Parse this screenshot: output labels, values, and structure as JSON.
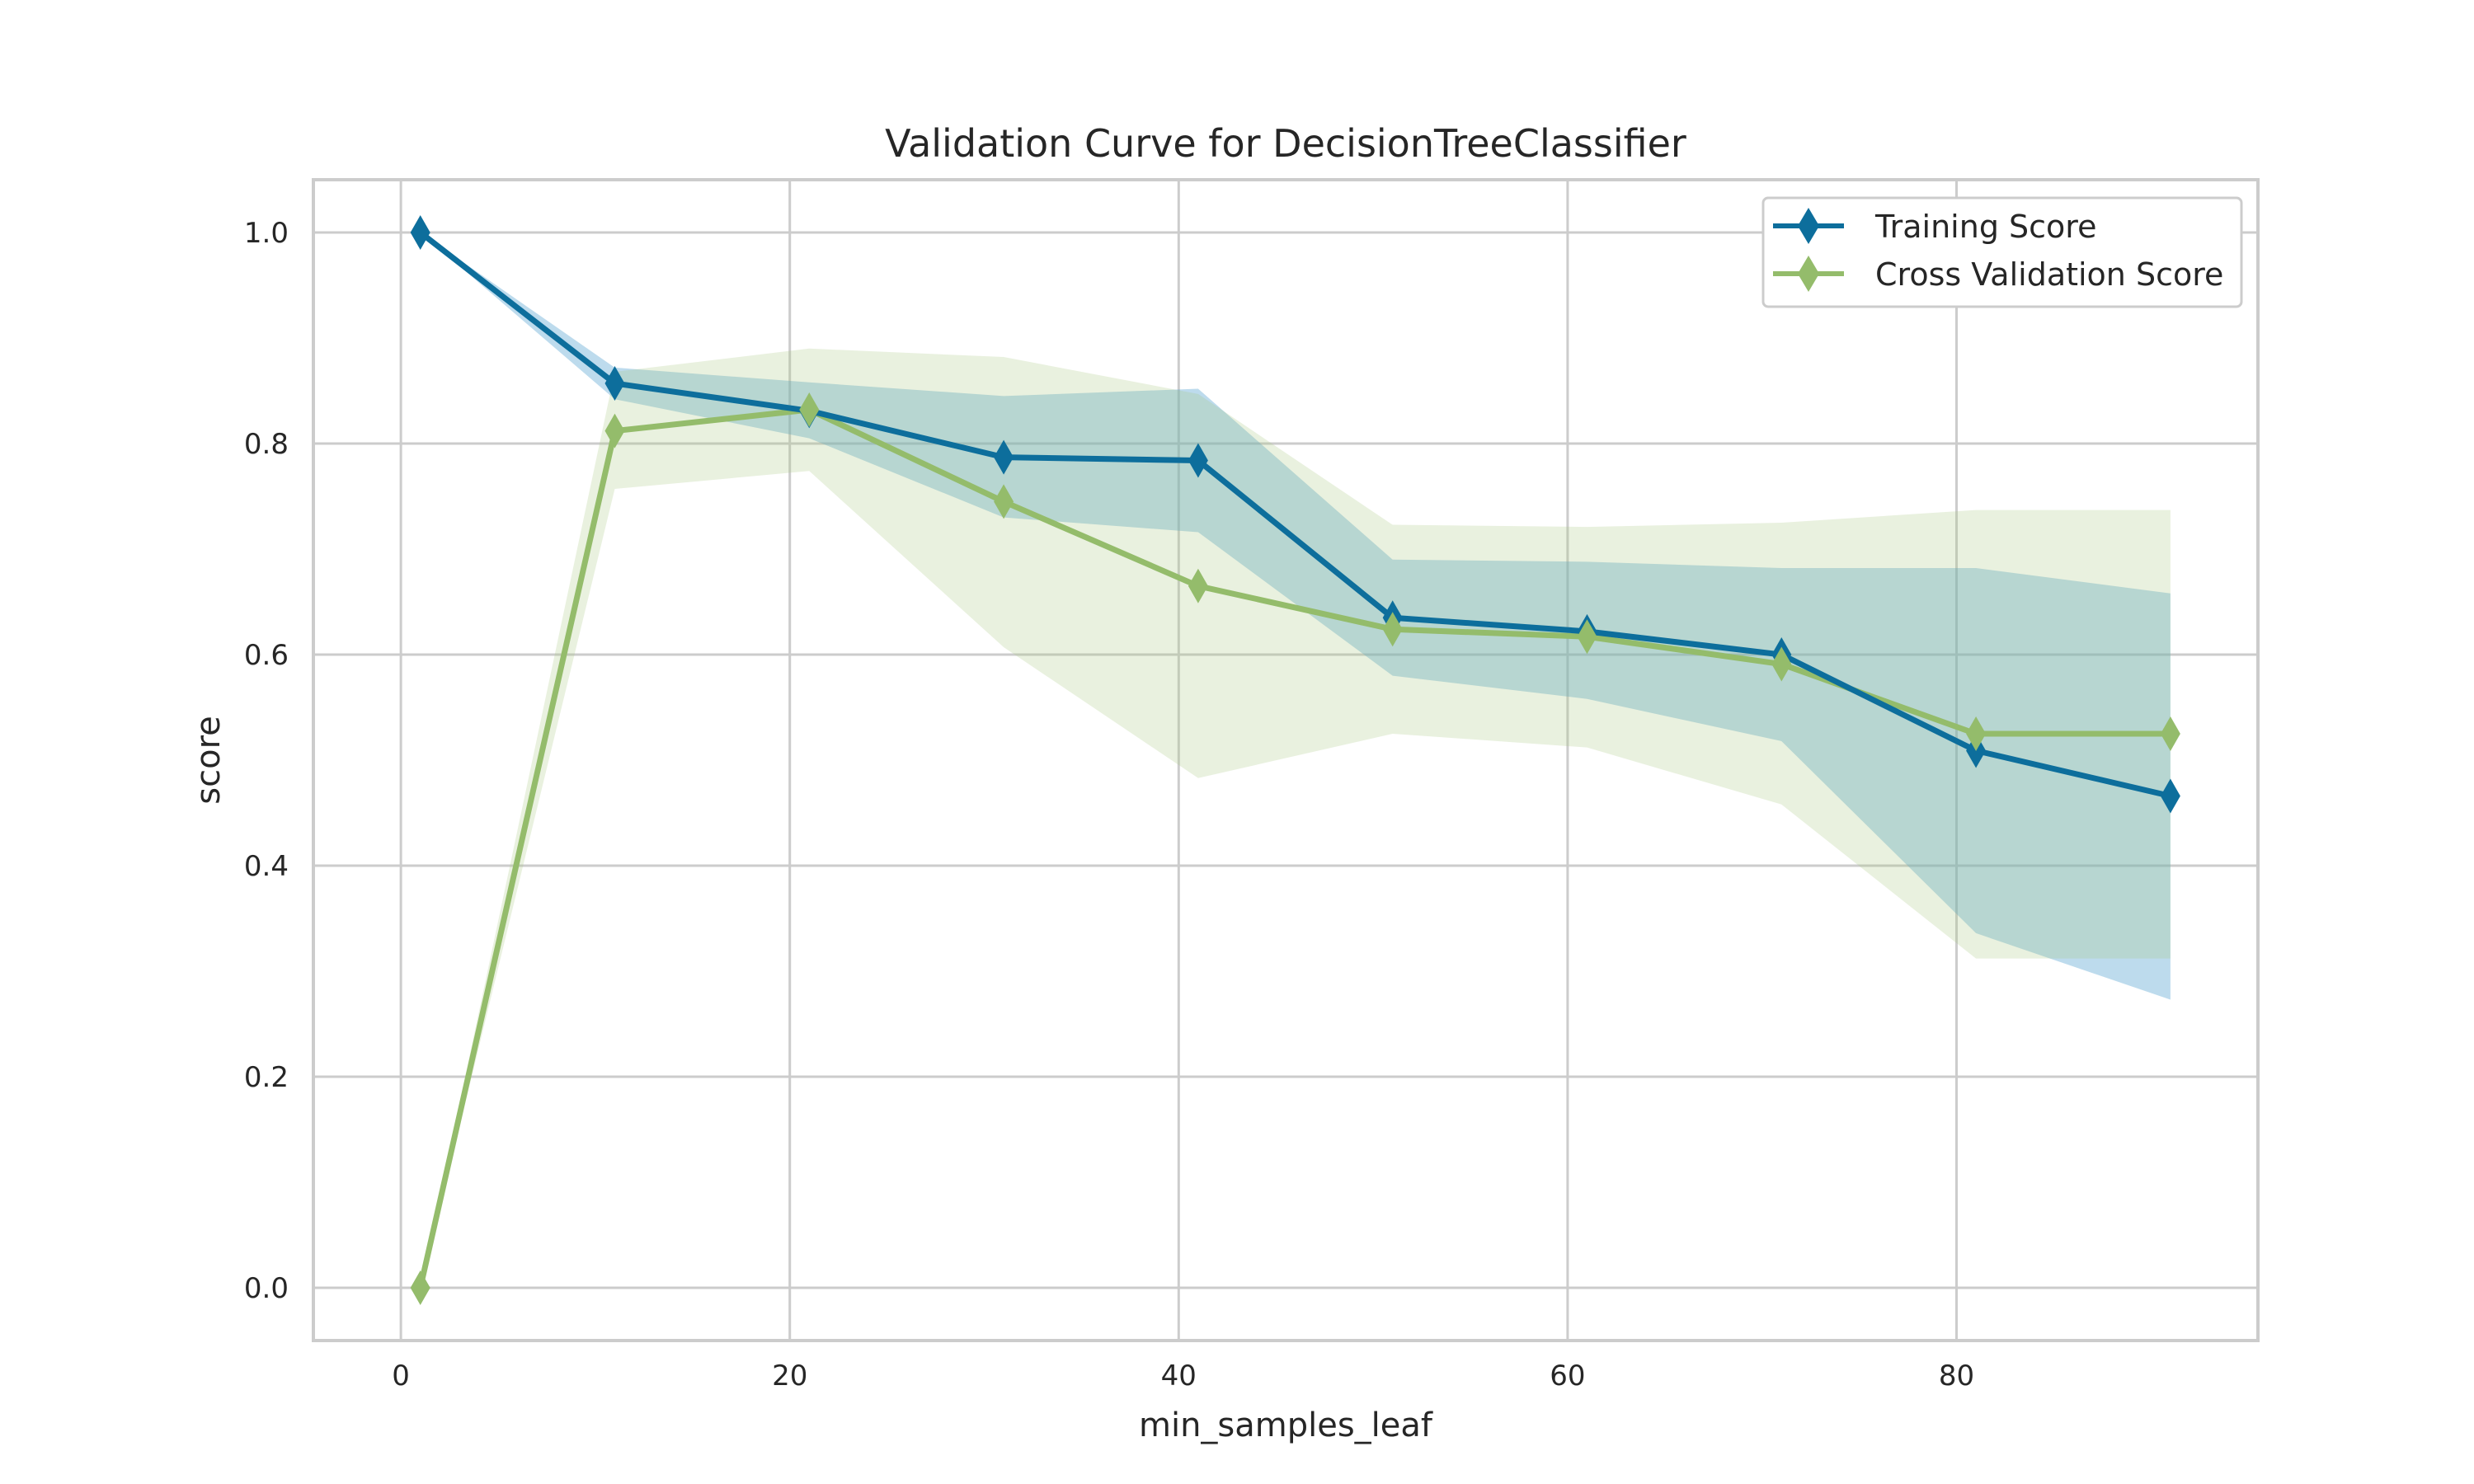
{
  "chart_data": {
    "type": "line",
    "title": "Validation Curve for DecisionTreeClassifier",
    "xlabel": "min_samples_leaf",
    "ylabel": "score",
    "xlim": [
      -4.5,
      95.5
    ],
    "ylim": [
      -0.05,
      1.05
    ],
    "xticks": [
      0,
      20,
      40,
      60,
      80
    ],
    "yticks": [
      0.0,
      0.2,
      0.4,
      0.6,
      0.8,
      1.0
    ],
    "ytick_labels": [
      "0.0",
      "0.2",
      "0.4",
      "0.6",
      "0.8",
      "1.0"
    ],
    "grid": true,
    "legend_position": "top-right",
    "x": [
      1,
      11,
      21,
      31,
      41,
      51,
      61,
      71,
      81,
      91
    ],
    "series": [
      {
        "name": "Training Score",
        "color": "#0d6e9c",
        "band_color": "#5aa6d1",
        "values": [
          1.0,
          0.857,
          0.831,
          0.787,
          0.784,
          0.635,
          0.622,
          0.6,
          0.509,
          0.466
        ],
        "band_upper": [
          1.0,
          0.872,
          0.858,
          0.845,
          0.852,
          0.69,
          0.688,
          0.682,
          0.682,
          0.658
        ],
        "band_lower": [
          1.0,
          0.842,
          0.805,
          0.73,
          0.716,
          0.58,
          0.558,
          0.518,
          0.336,
          0.273
        ]
      },
      {
        "name": "Cross Validation Score",
        "color": "#94bc6b",
        "band_color": "#a6c97f",
        "values": [
          0.0,
          0.812,
          0.832,
          0.745,
          0.665,
          0.624,
          0.617,
          0.591,
          0.525,
          0.525
        ],
        "band_upper": [
          0.0,
          0.868,
          0.89,
          0.882,
          0.847,
          0.723,
          0.721,
          0.725,
          0.737,
          0.737
        ],
        "band_lower": [
          0.0,
          0.757,
          0.774,
          0.607,
          0.483,
          0.525,
          0.512,
          0.458,
          0.312,
          0.312
        ]
      }
    ]
  }
}
